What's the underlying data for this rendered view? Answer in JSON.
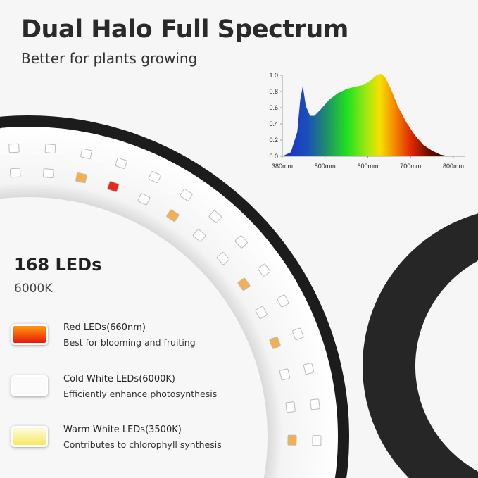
{
  "header": {
    "title": "Dual Halo Full Spectrum",
    "subtitle": "Better for plants growing"
  },
  "specs": {
    "count": "168 LEDs",
    "color_temp": "6000K"
  },
  "legend": [
    {
      "title": "Red LEDs(660nm)",
      "desc": "Best for blooming and fruiting",
      "color": "#f03a10"
    },
    {
      "title": "Cold White LEDs(6000K)",
      "desc": "Efficiently enhance photosynthesis",
      "color": "#ffffff"
    },
    {
      "title": "Warm White LEDs(3500K)",
      "desc": "Contributes to chlorophyll synthesis",
      "color": "#f8ec70"
    }
  ],
  "chart_data": {
    "type": "area",
    "title": "",
    "xlabel": "",
    "ylabel": "",
    "x_tick_labels": [
      "380mm",
      "500mm",
      "600mm",
      "700mm",
      "800mm"
    ],
    "y_tick_labels": [
      "0.0",
      "0.2",
      "0.4",
      "0.6",
      "0.8",
      "1.0"
    ],
    "ylim": [
      0,
      1.0
    ],
    "grid": false,
    "fill": "visible-spectrum gradient",
    "series": [
      {
        "x": [
          400,
          420,
          435,
          442,
          448,
          455,
          465,
          475,
          490,
          510,
          530,
          550,
          570,
          590,
          605,
          620,
          630,
          640,
          655,
          670,
          690,
          710,
          730,
          750,
          770,
          790,
          800
        ],
        "y": [
          0.0,
          0.05,
          0.3,
          0.7,
          0.87,
          0.62,
          0.5,
          0.5,
          0.58,
          0.7,
          0.78,
          0.83,
          0.86,
          0.88,
          0.93,
          1.0,
          1.02,
          0.98,
          0.82,
          0.62,
          0.42,
          0.26,
          0.14,
          0.07,
          0.02,
          0.0,
          0.0
        ]
      }
    ]
  }
}
